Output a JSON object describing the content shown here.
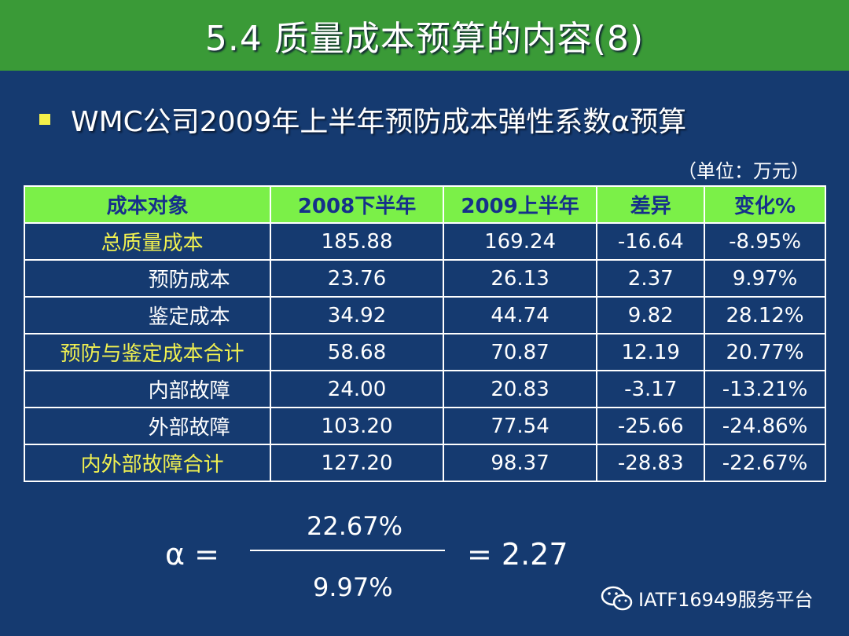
{
  "header": {
    "title": "5.4 质量成本预算的内容(8)"
  },
  "bullet": {
    "text": "WMC公司2009年上半年预防成本弹性系数α预算"
  },
  "unit_note": "（单位：万元）",
  "table": {
    "headers": [
      "成本对象",
      "2008下半年",
      "2009上半年",
      "差异",
      "变化%"
    ],
    "rows": [
      {
        "label": "总质量成本",
        "values": [
          "185.88",
          "169.24",
          "-16.64",
          "-8.95%"
        ]
      },
      {
        "label": "预防成本",
        "values": [
          "23.76",
          "26.13",
          "2.37",
          "9.97%"
        ]
      },
      {
        "label": "鉴定成本",
        "values": [
          "34.92",
          "44.74",
          "9.82",
          "28.12%"
        ]
      },
      {
        "label": "预防与鉴定成本合计",
        "values": [
          "58.68",
          "70.87",
          "12.19",
          "20.77%"
        ]
      },
      {
        "label": "内部故障",
        "values": [
          "24.00",
          "20.83",
          "-3.17",
          "-13.21%"
        ]
      },
      {
        "label": "外部故障",
        "values": [
          "103.20",
          "77.54",
          "-25.66",
          "-24.86%"
        ]
      },
      {
        "label": "内外部故障合计",
        "values": [
          "127.20",
          "98.37",
          "-28.83",
          "-22.67%"
        ]
      }
    ]
  },
  "formula": {
    "lhs": "α =",
    "numerator": "22.67%",
    "denominator": "9.97%",
    "result": "=  2.27"
  },
  "watermark": {
    "icon": "wechat-icon",
    "text": "IATF16949服务平台"
  },
  "colors": {
    "background": "#153a70",
    "title_bar": "#3a9a37",
    "table_header": "#7bf048",
    "highlight_text": "#f0f050",
    "bullet": "#f4f04a"
  }
}
